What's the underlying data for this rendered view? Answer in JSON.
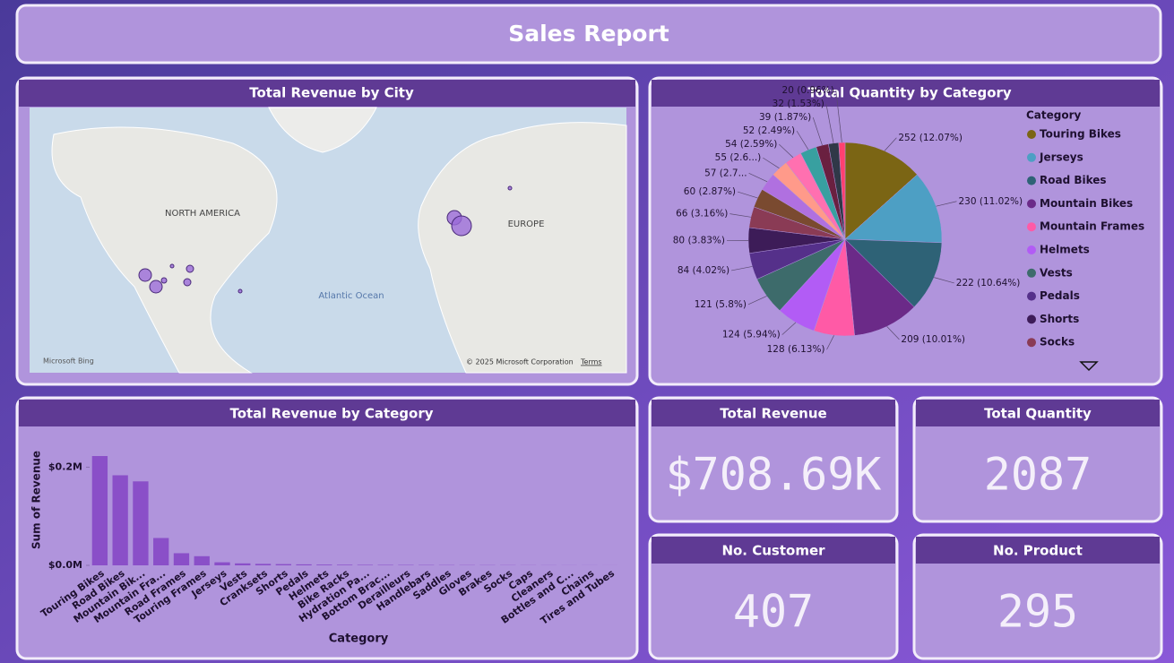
{
  "header": {
    "title": "Sales Report"
  },
  "map": {
    "title": "Total Revenue by City",
    "labels": [
      "NORTH AMERICA",
      "EUROPE",
      "Atlantic Ocean"
    ],
    "brand": "Microsoft Bing",
    "copyright": "© 2025 Microsoft Corporation",
    "terms": "Terms"
  },
  "chart_data": [
    {
      "type": "pie",
      "title": "Total Quantity by Category",
      "legend_title": "Category",
      "categories": [
        "Touring Bikes",
        "Jerseys",
        "Road Bikes",
        "Mountain Bikes",
        "Mountain Frames",
        "Helmets",
        "Vests",
        "Pedals",
        "Shorts",
        "Socks",
        null,
        null,
        null,
        null,
        null,
        null,
        null,
        null
      ],
      "values": [
        252,
        230,
        222,
        209,
        128,
        124,
        121,
        84,
        80,
        66,
        60,
        57,
        55,
        54,
        52,
        39,
        32,
        20
      ],
      "value_labels": [
        "252 (12.07%)",
        "230 (11.02%)",
        "222 (10.64%)",
        "209 (10.01%)",
        "128 (6.13%)",
        "124 (5.94%)",
        "121 (5.8%)",
        "84 (4.02%)",
        "80 (3.83%)",
        "66 (3.16%)",
        "60 (2.87%)",
        "57 (2.7...",
        "55 (2.6...)",
        "54 (2.59%)",
        "52 (2.49%)",
        "39 (1.87%)",
        "32 (1.53%)",
        "20 (0.96%)"
      ],
      "colors": [
        "#7b6514",
        "#4d9fc4",
        "#2e6276",
        "#6b2a88",
        "#ff5aa6",
        "#b25cf5",
        "#3d6b6b",
        "#55308a",
        "#3d1c58",
        "#8a3b55",
        "#7a4a30",
        "#b070e0",
        "#ff9a8a",
        "#ff70b0",
        "#38a0a0",
        "#6a2040",
        "#303848",
        "#ff4070"
      ],
      "legend": "right"
    },
    {
      "type": "bar",
      "title": "Total Revenue by Category",
      "x_label": "Category",
      "y_label": "Sum of Revenue",
      "categories": [
        "Touring Bikes",
        "Road Bikes",
        "Mountain Bik...",
        "Mountain Fra...",
        "Road Frames",
        "Touring Frames",
        "Jerseys",
        "Vests",
        "Cranksets",
        "Shorts",
        "Pedals",
        "Helmets",
        "Bike Racks",
        "Hydration Pa...",
        "Bottom Brac...",
        "Derailleurs",
        "Handlebars",
        "Saddles",
        "Gloves",
        "Brakes",
        "Socks",
        "Caps",
        "Cleaners",
        "Bottles and C...",
        "Chains",
        "Tires and Tubes"
      ],
      "values": [
        222700,
        183500,
        171100,
        55700,
        24700,
        18600,
        6200,
        4000,
        3000,
        2500,
        2000,
        1500,
        1200,
        1000,
        900,
        800,
        700,
        600,
        500,
        450,
        400,
        300,
        250,
        200,
        150,
        100
      ],
      "color": "#8a4fc8",
      "ylim": [
        0,
        230000
      ],
      "yticks": [
        {
          "value": 0,
          "label": "$0.0M"
        },
        {
          "value": 200000,
          "label": "$0.2M"
        }
      ]
    }
  ],
  "kpis": [
    {
      "title": "Total Revenue",
      "value": "$708.69K"
    },
    {
      "title": "Total Quantity",
      "value": 2087
    },
    {
      "title": "No. Customer",
      "value": 407
    },
    {
      "title": "No. Product",
      "value": 295
    }
  ]
}
